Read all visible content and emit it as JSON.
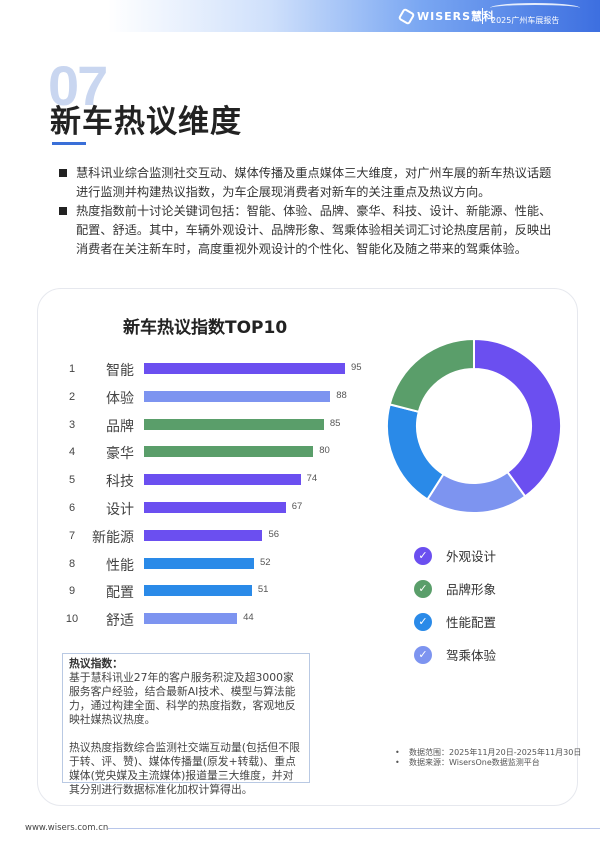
{
  "header": {
    "brand": "WISERS慧科",
    "report": "2025广州车展报告"
  },
  "section": {
    "number": "07",
    "title": "新车热议维度"
  },
  "bullets": [
    "慧科讯业综合监测社交互动、媒体传播及重点媒体三大维度，对广州车展的新车热议话题进行监测并构建热议指数，为车企展现消费者对新车的关注重点及热议方向。",
    "热度指数前十讨论关键词包括：智能、体验、品牌、豪华、科技、设计、新能源、性能、配置、舒适。其中，车辆外观设计、品牌形象、驾乘体验相关词汇讨论热度居前，反映出消费者在关注新车时，高度重视外观设计的个性化、智能化及随之带来的驾乘体验。"
  ],
  "chart_data": [
    {
      "type": "bar",
      "orientation": "horizontal",
      "title": "新车热议指数TOP10",
      "categories": [
        "智能",
        "体验",
        "品牌",
        "豪华",
        "科技",
        "设计",
        "新能源",
        "性能",
        "配置",
        "舒适"
      ],
      "ranks": [
        "1",
        "2",
        "3",
        "4",
        "5",
        "6",
        "7",
        "8",
        "9",
        "10"
      ],
      "values": [
        95,
        88,
        85,
        80,
        74,
        67,
        56,
        52,
        51,
        44
      ],
      "colors": [
        "#6b4ff0",
        "#7d94f0",
        "#5a9e6a",
        "#5a9e6a",
        "#6b4ff0",
        "#6b4ff0",
        "#6b4ff0",
        "#2a8ae8",
        "#2a8ae8",
        "#7d94f0"
      ],
      "xlabel": "",
      "ylabel": ""
    },
    {
      "type": "pie",
      "style": "donut",
      "categories": [
        "外观设计",
        "驾乘体验",
        "性能配置",
        "品牌形象"
      ],
      "values": [
        40,
        19,
        20,
        21
      ],
      "colors": [
        "#6b4ff0",
        "#7d94f0",
        "#2a8ae8",
        "#5a9e6a"
      ]
    }
  ],
  "legend": [
    {
      "label": "外观设计",
      "color": "#6b4ff0",
      "icon": "check-circle-icon"
    },
    {
      "label": "品牌形象",
      "color": "#5a9e6a",
      "icon": "check-circle-icon"
    },
    {
      "label": "性能配置",
      "color": "#2a8ae8",
      "icon": "check-circle-icon"
    },
    {
      "label": "驾乘体验",
      "color": "#7d94f0",
      "icon": "check-circle-icon"
    }
  ],
  "note": {
    "title": "热议指数：",
    "para1": "基于慧科讯业27年的客户服务积淀及超3000家服务客户经验，结合最新AI技术、模型与算法能力，通过构建全面、科学的热度指数，客观地反映社媒热议热度。",
    "para2": "热议热度指数综合监测社交端互动量(包括但不限于转、评、赞)、媒体传播量(原发+转载)、重点媒体(党央媒及主流媒体)报道量三大维度，并对其分别进行数据标准化加权计算得出。"
  },
  "source": {
    "range": "数据范围：2025年11月20日-2025年11月30日",
    "origin": "数据来源：WisersOne数据监测平台"
  },
  "footer": {
    "url": "www.wisers.com.cn"
  }
}
